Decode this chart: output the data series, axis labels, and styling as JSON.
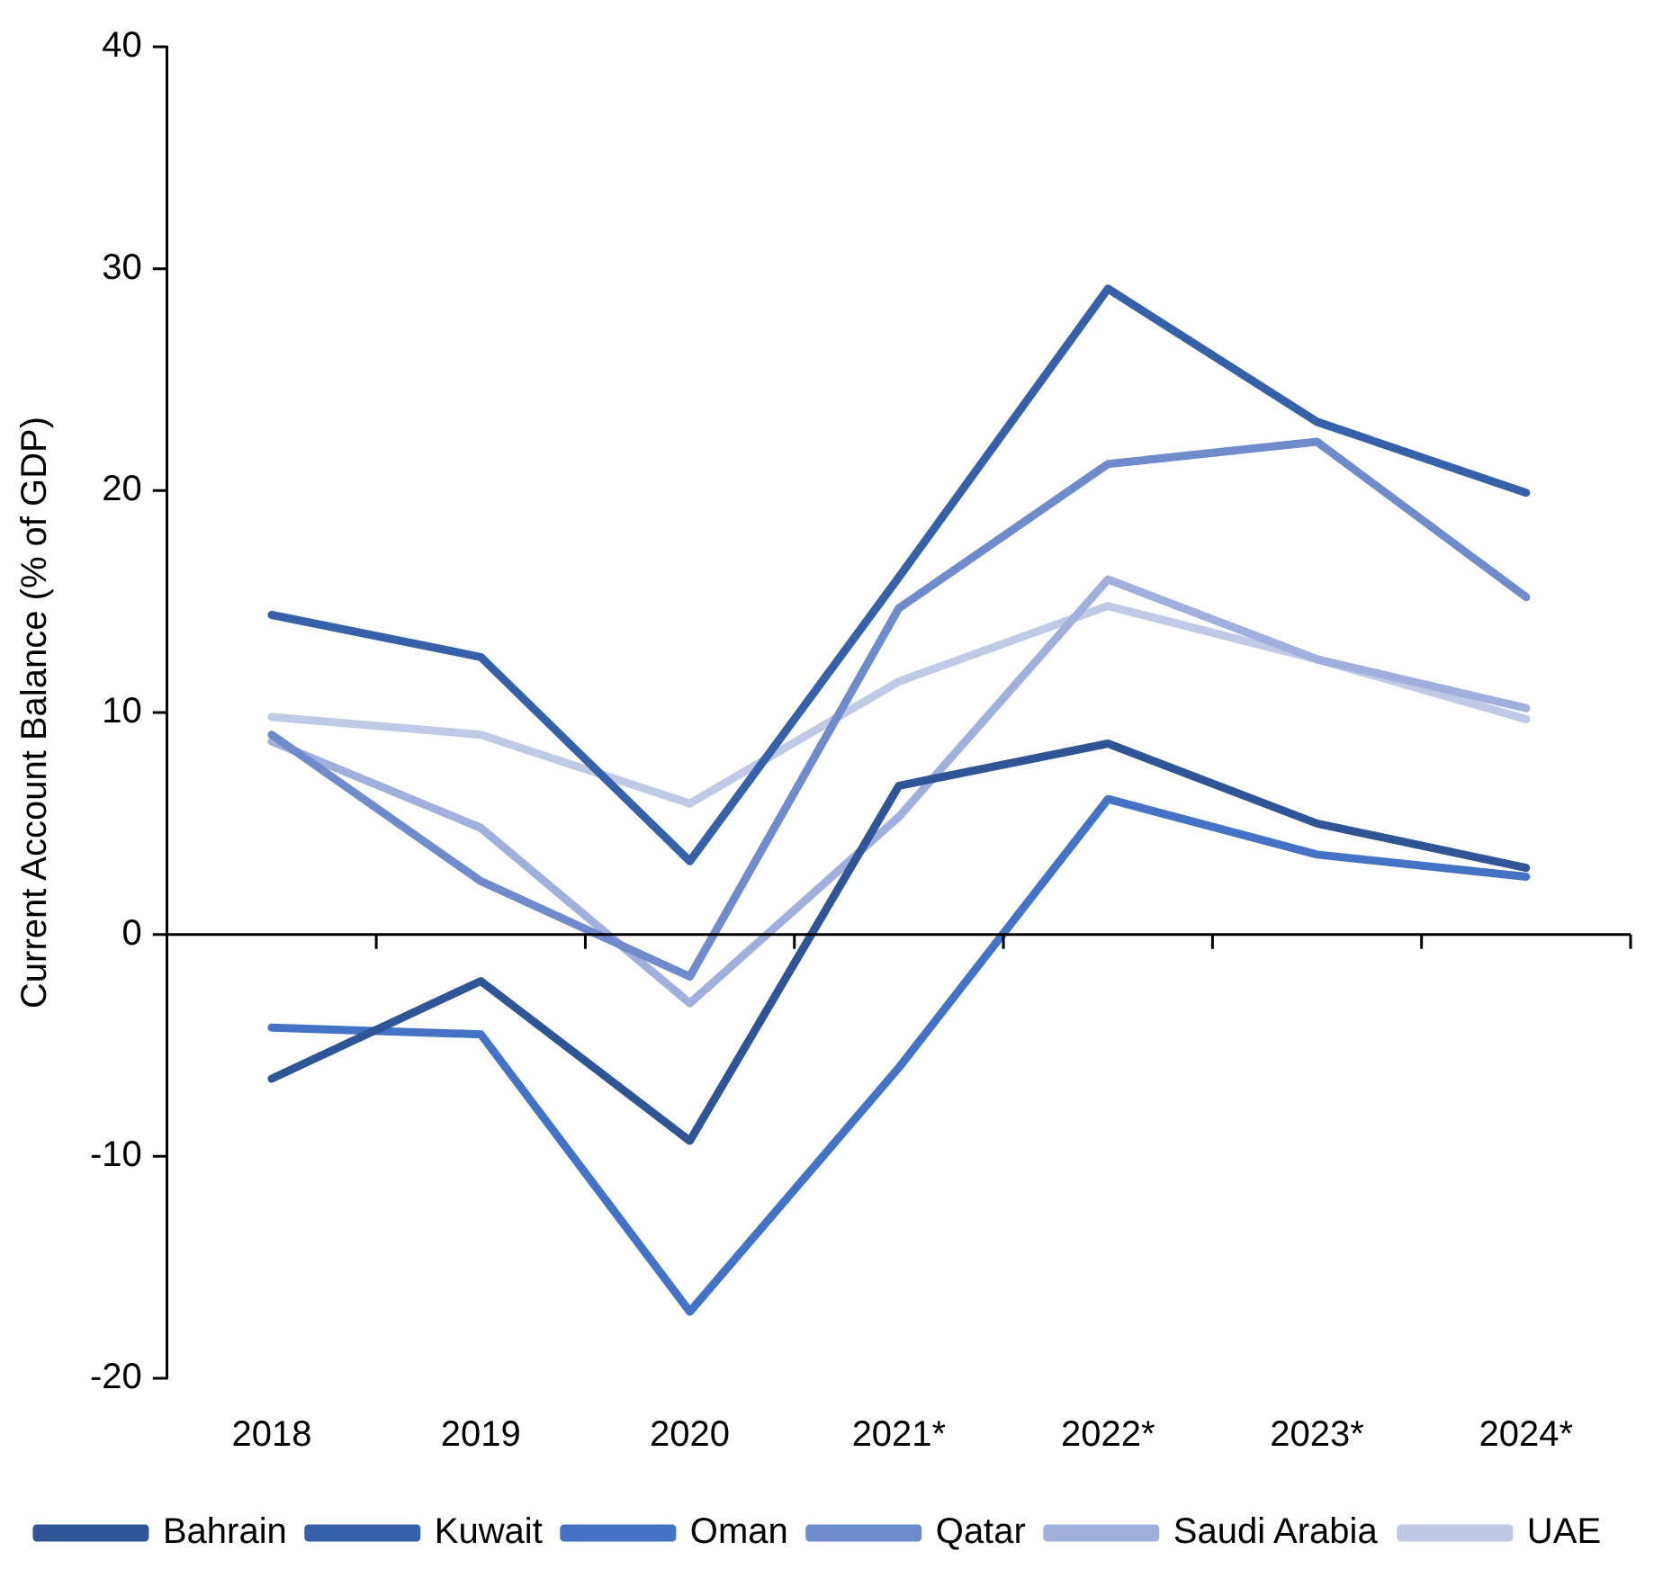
{
  "chart_data": {
    "type": "line",
    "ylabel": "Current Account Balance (% of GDP)",
    "categories": [
      "2018",
      "2019",
      "2020",
      "2021*",
      "2022*",
      "2023*",
      "2024*"
    ],
    "series": [
      {
        "name": "Bahrain",
        "color": "#2f5597",
        "values": [
          -6.5,
          -2.1,
          -9.3,
          6.7,
          8.6,
          5.0,
          3.0
        ]
      },
      {
        "name": "Kuwait",
        "color": "#3661a9",
        "values": [
          14.4,
          12.5,
          3.3,
          16.1,
          29.1,
          23.1,
          19.9
        ]
      },
      {
        "name": "Oman",
        "color": "#4472c4",
        "values": [
          -4.2,
          -4.5,
          -17.0,
          -6.0,
          6.1,
          3.6,
          2.6
        ]
      },
      {
        "name": "Qatar",
        "color": "#6f8bcc",
        "values": [
          9.0,
          2.4,
          -1.9,
          14.7,
          21.2,
          22.2,
          15.2
        ]
      },
      {
        "name": "Saudi Arabia",
        "color": "#a0afdb",
        "values": [
          8.7,
          4.8,
          -3.1,
          5.3,
          16.0,
          12.4,
          10.2
        ]
      },
      {
        "name": "UAE",
        "color": "#c0cae6",
        "values": [
          9.8,
          9.0,
          5.9,
          11.4,
          14.8,
          12.4,
          9.7
        ]
      }
    ],
    "ref_lines": [
      {
        "axis": "y",
        "value": 0,
        "color": "#000000"
      }
    ],
    "ylim": [
      -20,
      40
    ],
    "yticks": [
      -20,
      -10,
      0,
      10,
      20,
      30,
      40
    ],
    "grid": false,
    "legend": "bottom",
    "marker": "none",
    "line_style": "solid"
  }
}
